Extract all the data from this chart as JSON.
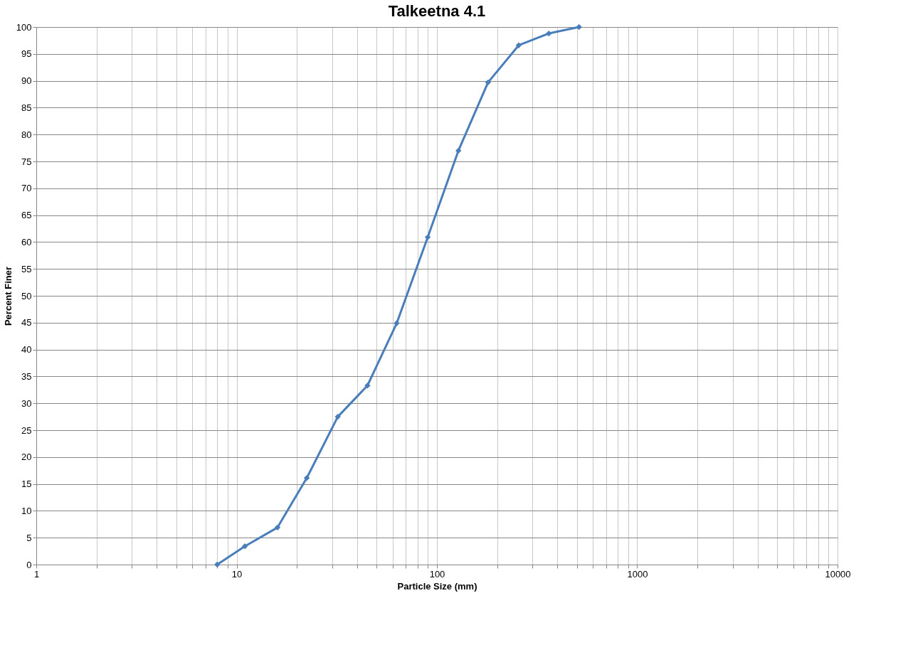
{
  "chart_data": {
    "type": "line",
    "title": "Talkeetna 4.1",
    "xlabel": "Particle Size (mm)",
    "ylabel": "Percent Finer",
    "x": [
      8,
      11,
      16,
      22.4,
      32,
      45,
      63,
      90,
      128,
      180,
      256,
      362,
      512
    ],
    "series": [
      {
        "color": "#4a7ebb",
        "values": [
          0,
          3.4,
          6.9,
          16.1,
          27.5,
          33.3,
          44.9,
          60.9,
          77.0,
          89.7,
          96.6,
          98.8,
          100
        ]
      }
    ],
    "log": "x",
    "xlim": [
      1,
      10000
    ],
    "xticks": [
      1,
      {
        "value": 2,
        "label": null
      },
      {
        "value": 3,
        "label": null
      },
      {
        "value": 4,
        "label": null
      },
      {
        "value": 5,
        "label": null
      },
      {
        "value": 6,
        "label": null
      },
      {
        "value": 7,
        "label": null
      },
      {
        "value": 8,
        "label": null
      },
      {
        "value": 9,
        "label": null
      },
      10,
      {
        "value": 20,
        "label": null
      },
      {
        "value": 30,
        "label": null
      },
      {
        "value": 40,
        "label": null
      },
      {
        "value": 50,
        "label": null
      },
      {
        "value": 60,
        "label": null
      },
      {
        "value": 70,
        "label": null
      },
      {
        "value": 80,
        "label": null
      },
      {
        "value": 90,
        "label": null
      },
      100,
      {
        "value": 200,
        "label": null
      },
      {
        "value": 300,
        "label": null
      },
      {
        "value": 400,
        "label": null
      },
      {
        "value": 500,
        "label": null
      },
      {
        "value": 600,
        "label": null
      },
      {
        "value": 700,
        "label": null
      },
      {
        "value": 800,
        "label": null
      },
      {
        "value": 900,
        "label": null
      },
      1000,
      {
        "value": 2000,
        "label": null
      },
      {
        "value": 3000,
        "label": null
      },
      {
        "value": 4000,
        "label": null
      },
      {
        "value": 5000,
        "label": null
      },
      {
        "value": 6000,
        "label": null
      },
      {
        "value": 7000,
        "label": null
      },
      {
        "value": 8000,
        "label": null
      },
      {
        "value": 9000,
        "label": null
      },
      10000
    ],
    "ylim": [
      0,
      100
    ],
    "yticks": [
      0,
      5,
      10,
      15,
      20,
      25,
      30,
      35,
      40,
      45,
      50,
      55,
      60,
      65,
      70,
      75,
      80,
      85,
      90,
      95,
      100
    ],
    "grid": true,
    "marker": "diamond",
    "line_style": "solid",
    "legend": false
  }
}
